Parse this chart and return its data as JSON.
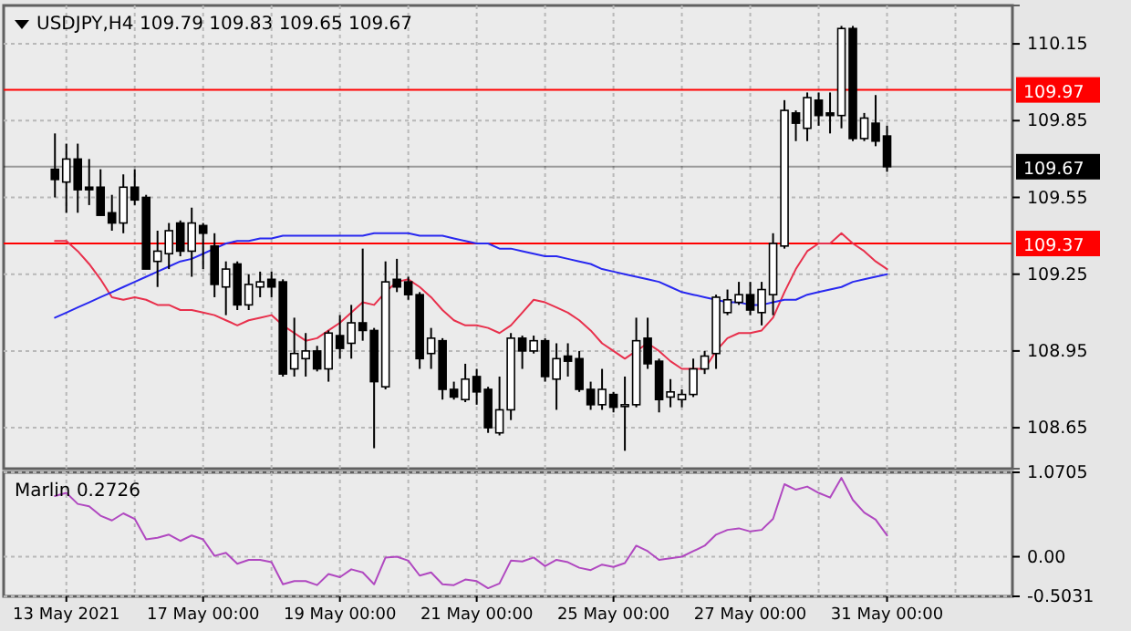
{
  "chart_data": [
    {
      "type": "candlestick",
      "title": "USDJPY,H4 109.79 109.83 109.65 109.67",
      "grid": true,
      "tick_labels": "y",
      "categories": [
        null,
        null,
        null,
        null,
        null,
        null,
        null,
        null,
        null,
        null,
        null,
        null,
        null,
        null,
        null,
        null,
        null,
        null,
        null,
        null,
        null,
        null,
        null,
        null,
        null,
        null,
        null,
        null,
        null,
        null,
        null,
        null,
        null,
        null,
        null,
        null,
        null,
        null,
        null,
        null,
        null,
        null,
        null,
        null,
        null,
        null,
        null,
        null,
        null,
        null,
        null,
        null,
        null,
        null,
        null,
        null,
        null,
        null,
        null,
        null,
        null,
        null,
        null,
        null,
        null,
        null,
        null,
        null,
        null,
        null,
        null,
        null,
        null,
        null
      ],
      "ohlc": [
        [
          109.66,
          109.8,
          109.55,
          109.62
        ],
        [
          109.61,
          109.76,
          109.49,
          109.7
        ],
        [
          109.7,
          109.76,
          109.49,
          109.58
        ],
        [
          109.59,
          109.7,
          109.52,
          109.58
        ],
        [
          109.59,
          109.66,
          109.48,
          109.48
        ],
        [
          109.49,
          109.56,
          109.42,
          109.45
        ],
        [
          109.45,
          109.64,
          109.41,
          109.59
        ],
        [
          109.59,
          109.66,
          109.52,
          109.54
        ],
        [
          109.55,
          109.56,
          109.27,
          109.27
        ],
        [
          109.3,
          109.42,
          109.2,
          109.34
        ],
        [
          109.33,
          109.45,
          109.27,
          109.42
        ],
        [
          109.45,
          109.46,
          109.32,
          109.34
        ],
        [
          109.34,
          109.51,
          109.24,
          109.45
        ],
        [
          109.44,
          109.45,
          109.27,
          109.41
        ],
        [
          109.36,
          109.41,
          109.16,
          109.21
        ],
        [
          109.2,
          109.3,
          109.09,
          109.27
        ],
        [
          109.29,
          109.3,
          109.11,
          109.13
        ],
        [
          109.13,
          109.25,
          109.11,
          109.21
        ],
        [
          109.2,
          109.26,
          109.16,
          109.22
        ],
        [
          109.23,
          109.26,
          109.16,
          109.2
        ],
        [
          109.22,
          109.23,
          108.85,
          108.86
        ],
        [
          108.88,
          109.08,
          108.85,
          108.94
        ],
        [
          108.92,
          109.02,
          108.85,
          108.95
        ],
        [
          108.95,
          108.97,
          108.87,
          108.88
        ],
        [
          108.88,
          109.03,
          108.83,
          109.02
        ],
        [
          109.01,
          109.09,
          108.92,
          108.96
        ],
        [
          108.98,
          109.13,
          108.92,
          109.06
        ],
        [
          109.06,
          109.35,
          108.99,
          109.03
        ],
        [
          109.03,
          109.04,
          108.57,
          108.83
        ],
        [
          108.81,
          109.3,
          108.8,
          109.22
        ],
        [
          109.23,
          109.31,
          109.18,
          109.2
        ],
        [
          109.22,
          109.24,
          109.15,
          109.17
        ],
        [
          109.17,
          109.18,
          108.88,
          108.92
        ],
        [
          108.94,
          109.04,
          108.88,
          109.0
        ],
        [
          108.99,
          109.0,
          108.76,
          108.8
        ],
        [
          108.8,
          108.83,
          108.76,
          108.77
        ],
        [
          108.76,
          108.9,
          108.75,
          108.84
        ],
        [
          108.85,
          108.88,
          108.74,
          108.79
        ],
        [
          108.8,
          108.81,
          108.63,
          108.65
        ],
        [
          108.63,
          108.85,
          108.62,
          108.72
        ],
        [
          108.72,
          109.02,
          108.68,
          109.0
        ],
        [
          109.0,
          109.01,
          108.88,
          108.95
        ],
        [
          108.95,
          109.01,
          108.94,
          108.99
        ],
        [
          108.99,
          109.0,
          108.83,
          108.85
        ],
        [
          108.84,
          108.98,
          108.72,
          108.92
        ],
        [
          108.93,
          108.98,
          108.85,
          108.91
        ],
        [
          108.92,
          108.95,
          108.79,
          108.8
        ],
        [
          108.8,
          108.83,
          108.72,
          108.74
        ],
        [
          108.74,
          108.88,
          108.72,
          108.8
        ],
        [
          108.78,
          108.79,
          108.71,
          108.73
        ],
        [
          108.74,
          108.85,
          108.56,
          108.74
        ],
        [
          108.74,
          109.08,
          108.73,
          108.99
        ],
        [
          109.0,
          109.08,
          108.88,
          108.9
        ],
        [
          108.91,
          108.92,
          108.71,
          108.76
        ],
        [
          108.77,
          108.84,
          108.73,
          108.79
        ],
        [
          108.76,
          108.8,
          108.73,
          108.78
        ],
        [
          108.78,
          108.92,
          108.77,
          108.88
        ],
        [
          108.88,
          108.95,
          108.86,
          108.93
        ],
        [
          108.94,
          109.17,
          108.88,
          109.16
        ],
        [
          109.1,
          109.19,
          109.09,
          109.15
        ],
        [
          109.14,
          109.22,
          109.13,
          109.17
        ],
        [
          109.17,
          109.22,
          109.09,
          109.11
        ],
        [
          109.1,
          109.22,
          109.05,
          109.19
        ],
        [
          109.17,
          109.41,
          109.09,
          109.37
        ],
        [
          109.36,
          109.93,
          109.35,
          109.89
        ],
        [
          109.88,
          109.89,
          109.77,
          109.84
        ],
        [
          109.82,
          109.96,
          109.77,
          109.94
        ],
        [
          109.93,
          109.96,
          109.83,
          109.87
        ],
        [
          109.88,
          109.96,
          109.8,
          109.87
        ],
        [
          109.87,
          110.22,
          109.82,
          110.21
        ],
        [
          110.21,
          110.22,
          109.77,
          109.78
        ],
        [
          109.78,
          109.88,
          109.77,
          109.86
        ],
        [
          109.84,
          109.95,
          109.75,
          109.77
        ],
        [
          109.79,
          109.83,
          109.65,
          109.67
        ]
      ],
      "series": [
        {
          "type": "line",
          "color": "#e8304c",
          "values": [
            109.38,
            109.38,
            109.34,
            109.29,
            109.23,
            109.16,
            109.15,
            109.16,
            109.15,
            109.13,
            109.13,
            109.11,
            109.11,
            109.1,
            109.09,
            109.07,
            109.05,
            109.07,
            109.08,
            109.09,
            109.05,
            109.02,
            108.99,
            109.0,
            109.03,
            109.06,
            109.1,
            109.14,
            109.13,
            109.18,
            109.22,
            109.23,
            109.2,
            109.16,
            109.11,
            109.07,
            109.05,
            109.05,
            109.04,
            109.02,
            109.05,
            109.1,
            109.15,
            109.14,
            109.12,
            109.1,
            109.07,
            109.03,
            108.98,
            108.95,
            108.92,
            108.95,
            108.98,
            108.95,
            108.91,
            108.88,
            108.88,
            108.88,
            108.95,
            109.0,
            109.02,
            109.02,
            109.03,
            109.08,
            109.18,
            109.27,
            109.34,
            109.37,
            109.37,
            109.41,
            109.37,
            109.34,
            109.3,
            109.27
          ]
        },
        {
          "type": "line",
          "color": "#2828f0",
          "values": [
            109.08,
            109.1,
            109.12,
            109.14,
            109.16,
            109.18,
            109.2,
            109.22,
            109.24,
            109.26,
            109.28,
            109.3,
            109.31,
            109.33,
            109.35,
            109.37,
            109.38,
            109.38,
            109.39,
            109.39,
            109.4,
            109.4,
            109.4,
            109.4,
            109.4,
            109.4,
            109.4,
            109.4,
            109.41,
            109.41,
            109.41,
            109.41,
            109.4,
            109.4,
            109.4,
            109.39,
            109.38,
            109.37,
            109.37,
            109.35,
            109.35,
            109.34,
            109.33,
            109.32,
            109.32,
            109.31,
            109.3,
            109.29,
            109.27,
            109.26,
            109.25,
            109.24,
            109.23,
            109.22,
            109.2,
            109.18,
            109.17,
            109.16,
            109.15,
            109.14,
            109.14,
            109.13,
            109.13,
            109.14,
            109.15,
            109.15,
            109.17,
            109.18,
            109.19,
            109.2,
            109.22,
            109.23,
            109.24,
            109.25
          ]
        }
      ],
      "ylim": [
        108.49,
        110.3
      ],
      "yticks": [
        108.65,
        108.95,
        109.25,
        109.55,
        109.85,
        110.15
      ],
      "ref_lines": [
        {
          "axis": "y",
          "value": 109.97,
          "label": "109.97",
          "color": "#ff0000"
        },
        {
          "axis": "y",
          "value": 109.37,
          "label": "109.37",
          "color": "#ff0000"
        },
        {
          "axis": "y",
          "value": 109.67,
          "label": "109.67",
          "color": "#000000"
        }
      ]
    },
    {
      "type": "line",
      "title": "Marlin 0.2726",
      "grid": true,
      "categories": [
        null,
        "13 May 2021",
        null,
        null,
        null,
        null,
        null,
        null,
        null,
        null,
        null,
        null,
        null,
        "17 May 00:00",
        null,
        null,
        null,
        null,
        null,
        null,
        null,
        null,
        null,
        null,
        null,
        "19 May 00:00",
        null,
        null,
        null,
        null,
        null,
        null,
        null,
        null,
        null,
        null,
        null,
        "21 May 00:00",
        null,
        null,
        null,
        null,
        null,
        null,
        null,
        null,
        null,
        null,
        null,
        "25 May 00:00",
        null,
        null,
        null,
        null,
        null,
        null,
        null,
        null,
        null,
        null,
        null,
        "27 May 00:00",
        null,
        null,
        null,
        null,
        null,
        null,
        null,
        null,
        null,
        null,
        null,
        "31 May 00:00"
      ],
      "series": [
        {
          "color": "#b048c0",
          "values": [
            0.77,
            0.81,
            0.67,
            0.64,
            0.52,
            0.46,
            0.55,
            0.48,
            0.22,
            0.24,
            0.28,
            0.2,
            0.27,
            0.22,
            0.01,
            0.05,
            -0.09,
            -0.04,
            -0.04,
            -0.07,
            -0.35,
            -0.31,
            -0.31,
            -0.36,
            -0.22,
            -0.26,
            -0.16,
            -0.2,
            -0.35,
            -0.01,
            0.0,
            -0.05,
            -0.24,
            -0.2,
            -0.35,
            -0.36,
            -0.29,
            -0.31,
            -0.4,
            -0.34,
            -0.05,
            -0.06,
            -0.01,
            -0.12,
            -0.04,
            -0.07,
            -0.14,
            -0.17,
            -0.1,
            -0.13,
            -0.08,
            0.14,
            0.07,
            -0.04,
            -0.02,
            0.0,
            0.07,
            0.14,
            0.28,
            0.34,
            0.36,
            0.32,
            0.34,
            0.48,
            0.92,
            0.85,
            0.89,
            0.81,
            0.75,
            1.0,
            0.72,
            0.56,
            0.47,
            0.27
          ]
        }
      ],
      "ylim": [
        -0.5031,
        1.0705
      ],
      "yticks": [
        1.0705,
        {
          "value": 0,
          "label": "0.00"
        },
        -0.5031
      ]
    }
  ]
}
